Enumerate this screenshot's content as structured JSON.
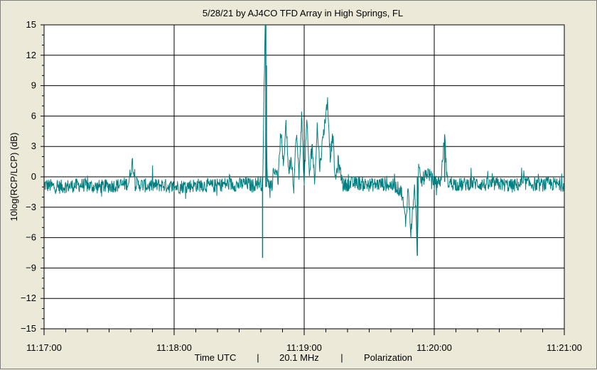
{
  "chart_data": {
    "type": "line",
    "title": "5/28/21  by  AJ4CO TFD Array  in  High Springs, FL",
    "ylabel": "10log(RCP/LCP) (dB)",
    "xlabel_parts": [
      "Time UTC",
      "|",
      "20.1 MHz",
      "|",
      "Polarization"
    ],
    "xlim_minutes": [
      0,
      4
    ],
    "ylim": [
      -15,
      15
    ],
    "y_ticks": [
      15,
      12,
      9,
      6,
      3,
      0,
      -3,
      -6,
      -9,
      -12,
      -15
    ],
    "y_tick_labels": [
      "15",
      "12",
      "9",
      "6",
      "3",
      "0",
      "−3",
      "−6",
      "−9",
      "−12",
      "−15"
    ],
    "x_ticks_minutes": [
      0,
      1,
      2,
      3,
      4
    ],
    "x_tick_labels": [
      "11:17:00",
      "11:18:00",
      "11:19:00",
      "11:20:00",
      "11:21:00"
    ],
    "grid": true,
    "series": [
      {
        "color": "#008080",
        "points": [
          [
            0.0,
            -0.8
          ],
          [
            0.1,
            -1.0
          ],
          [
            0.2,
            -0.9
          ],
          [
            0.3,
            -0.8
          ],
          [
            0.4,
            -1.0
          ],
          [
            0.5,
            -0.9
          ],
          [
            0.6,
            -0.8
          ],
          [
            0.65,
            -0.6
          ],
          [
            0.68,
            1.5
          ],
          [
            0.7,
            -0.7
          ],
          [
            0.8,
            -0.9
          ],
          [
            0.9,
            -0.8
          ],
          [
            1.0,
            -1.0
          ],
          [
            1.1,
            -0.9
          ],
          [
            1.2,
            -0.8
          ],
          [
            1.3,
            -0.9
          ],
          [
            1.4,
            -0.7
          ],
          [
            1.5,
            -0.8
          ],
          [
            1.55,
            -0.6
          ],
          [
            1.6,
            -0.9
          ],
          [
            1.65,
            -0.5
          ],
          [
            1.68,
            -0.8
          ],
          [
            1.7,
            15.0
          ],
          [
            1.705,
            11.0
          ],
          [
            1.71,
            3.0
          ],
          [
            1.72,
            -0.6
          ],
          [
            1.75,
            -0.8
          ],
          [
            1.78,
            1.0
          ],
          [
            1.8,
            -0.5
          ],
          [
            1.82,
            4.5
          ],
          [
            1.84,
            1.0
          ],
          [
            1.86,
            5.5
          ],
          [
            1.88,
            0.5
          ],
          [
            1.9,
            2.0
          ],
          [
            1.92,
            -1.0
          ],
          [
            1.94,
            4.5
          ],
          [
            1.96,
            0.0
          ],
          [
            1.98,
            6.0
          ],
          [
            2.0,
            -0.5
          ],
          [
            2.02,
            5.5
          ],
          [
            2.04,
            0.0
          ],
          [
            2.06,
            3.5
          ],
          [
            2.08,
            -0.5
          ],
          [
            2.1,
            5.0
          ],
          [
            2.12,
            1.0
          ],
          [
            2.15,
            4.5
          ],
          [
            2.18,
            7.5
          ],
          [
            2.2,
            2.0
          ],
          [
            2.22,
            4.0
          ],
          [
            2.24,
            -0.5
          ],
          [
            2.26,
            1.5
          ],
          [
            2.3,
            -0.8
          ],
          [
            2.4,
            -0.6
          ],
          [
            2.5,
            -0.8
          ],
          [
            2.6,
            -0.7
          ],
          [
            2.7,
            -0.9
          ],
          [
            2.75,
            -1.5
          ],
          [
            2.78,
            -4.5
          ],
          [
            2.8,
            -1.0
          ],
          [
            2.82,
            -5.5
          ],
          [
            2.85,
            -1.0
          ],
          [
            2.87,
            -7.5
          ],
          [
            2.88,
            0.8
          ],
          [
            2.9,
            -0.5
          ],
          [
            2.95,
            0.5
          ],
          [
            3.0,
            -0.6
          ],
          [
            3.05,
            -0.4
          ],
          [
            3.08,
            4.0
          ],
          [
            3.1,
            -0.5
          ],
          [
            3.2,
            -0.8
          ],
          [
            3.3,
            -0.6
          ],
          [
            3.4,
            -0.8
          ],
          [
            3.5,
            -0.7
          ],
          [
            3.6,
            -0.9
          ],
          [
            3.7,
            -0.6
          ],
          [
            3.8,
            -0.8
          ],
          [
            3.9,
            -0.7
          ],
          [
            4.0,
            -0.8
          ]
        ]
      }
    ],
    "spikes": [
      {
        "x": 1.68,
        "low": -8.0,
        "high": 0.0
      },
      {
        "x": 1.705,
        "low": -1.0,
        "high": 15.0
      },
      {
        "x": 1.71,
        "low": -1.0,
        "high": 11.0
      },
      {
        "x": 2.87,
        "low": -7.8,
        "high": 0.0
      },
      {
        "x": 3.08,
        "low": -0.5,
        "high": 4.0
      }
    ]
  }
}
